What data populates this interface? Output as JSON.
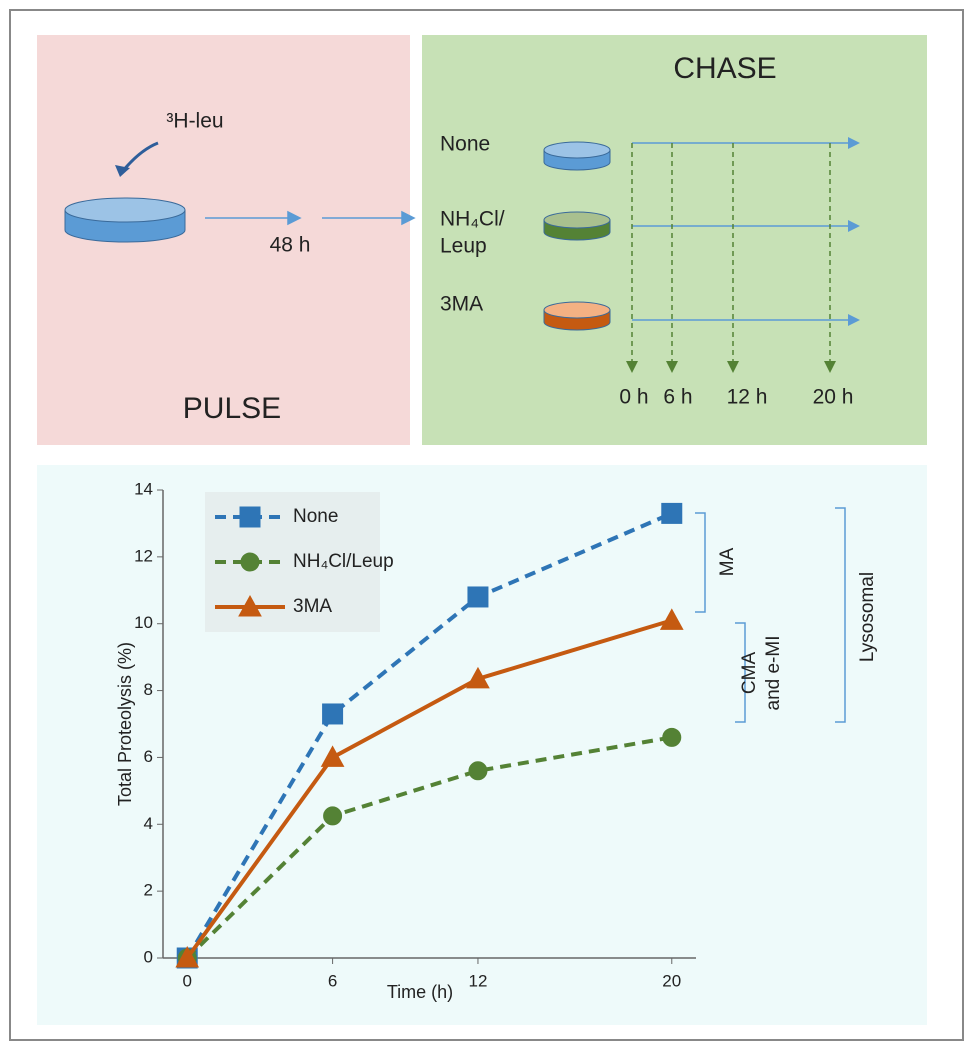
{
  "diagram": {
    "pulse": {
      "label": "PULSE",
      "tracer": "³H-leu",
      "duration": "48 h"
    },
    "chase": {
      "label": "CHASE",
      "conditions": [
        [
          "None"
        ],
        [
          "NH₄Cl/",
          "Leup"
        ],
        [
          "3MA"
        ]
      ],
      "timepoints": [
        "0 h",
        "6 h",
        "12 h",
        "20 h"
      ]
    }
  },
  "chart_data": {
    "type": "line",
    "x_label": "Time (h)",
    "y_label": "Total Proteolysis (%)",
    "x": [
      0,
      6,
      12,
      20
    ],
    "series": [
      {
        "name": "None",
        "color": "#2e75b6",
        "dash": true,
        "marker": "square",
        "values": [
          0,
          7.3,
          10.8,
          13.3
        ]
      },
      {
        "name": "NH₄Cl/Leup",
        "color": "#548235",
        "dash": true,
        "marker": "circle",
        "values": [
          0,
          4.25,
          5.6,
          6.6
        ]
      },
      {
        "name": "3MA",
        "color": "#c55a11",
        "dash": false,
        "marker": "triangle",
        "values": [
          0,
          6.0,
          8.35,
          10.1
        ]
      }
    ],
    "xlim": [
      -1,
      21
    ],
    "xticks": [
      0,
      6,
      12,
      20
    ],
    "ylim": [
      0,
      14
    ],
    "yticks": [
      0,
      2,
      4,
      6,
      8,
      10,
      12,
      14
    ],
    "annotations": [
      [
        "MA"
      ],
      [
        "CMA",
        "and e-MI"
      ],
      [
        "Lysosomal"
      ]
    ]
  }
}
